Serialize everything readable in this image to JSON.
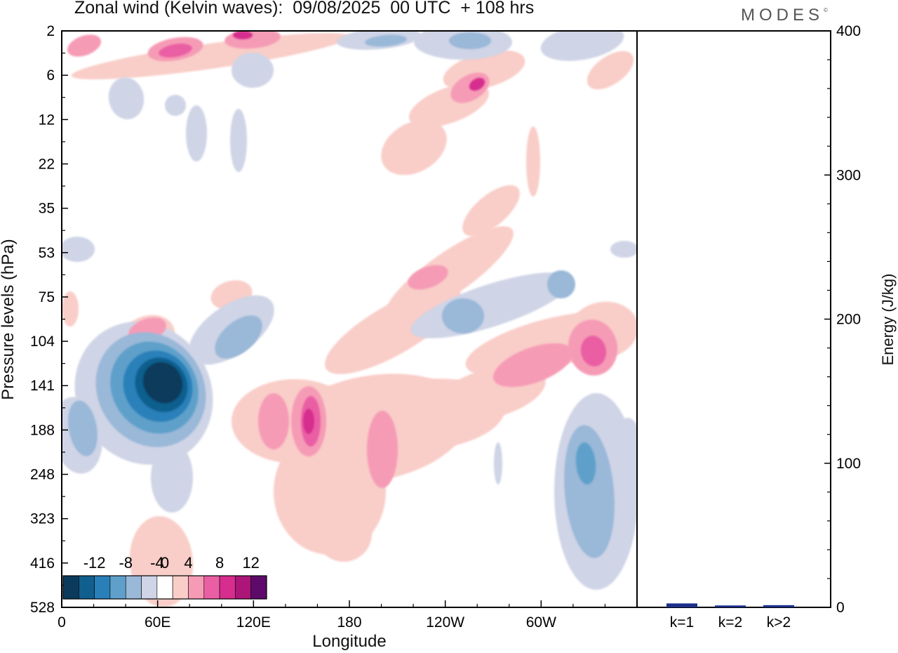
{
  "header": {
    "title": "Zonal wind (Kelvin waves):  09/08/2025  00 UTC  + 108 hrs",
    "brand": "MODES"
  },
  "chart_data": [
    {
      "type": "heatmap",
      "title": "Zonal wind (Kelvin waves):  09/08/2025  00 UTC  + 108 hrs",
      "xlabel": "Longitude",
      "ylabel": "Pressure levels (hPa)",
      "x_ticks": [
        "0",
        "60E",
        "120E",
        "180",
        "120W",
        "60W"
      ],
      "x_tick_degrees": [
        0,
        60,
        120,
        180,
        240,
        300
      ],
      "xlim_degrees": [
        0,
        360
      ],
      "y_ticks": [
        "2",
        "6",
        "12",
        "22",
        "35",
        "53",
        "75",
        "104",
        "141",
        "188",
        "248",
        "323",
        "416",
        "528"
      ],
      "y_scale": "model levels (index spacing)",
      "color_scale": {
        "labels": [
          "-12",
          "-8",
          "-4",
          "0",
          "4",
          "8",
          "12"
        ],
        "boundaries": [
          -14,
          -12,
          -10,
          -8,
          -6,
          -4,
          -2,
          2,
          4,
          6,
          8,
          10,
          12,
          14
        ],
        "colors": [
          "#0b3a5c",
          "#115f8e",
          "#2980b9",
          "#5fa0ca",
          "#9ab8d8",
          "#cfd4e6",
          "#ffffff",
          "#f9cdc8",
          "#f69bb6",
          "#ea5fa3",
          "#d62d8e",
          "#ac1679",
          "#5e0a6a"
        ]
      },
      "features": [
        {
          "sign": "negative",
          "peak_value": -13,
          "lon": 65,
          "level_hPa": 141
        },
        {
          "sign": "negative",
          "peak_value": -7,
          "lon": 330,
          "level_hPa": 248
        },
        {
          "sign": "negative",
          "peak_value": -5,
          "lon": 245,
          "level_hPa": 104
        },
        {
          "sign": "positive",
          "peak_value": 8,
          "lon": 155,
          "level_hPa": 170
        },
        {
          "sign": "positive",
          "peak_value": 7,
          "lon": 332,
          "level_hPa": 130
        },
        {
          "sign": "positive",
          "peak_value": 9,
          "lon": 115,
          "level_hPa": 2
        },
        {
          "sign": "positive",
          "peak_value": 8,
          "lon": 260,
          "level_hPa": 6
        }
      ]
    },
    {
      "type": "bar",
      "categories": [
        "k=1",
        "k=2",
        "k>2"
      ],
      "values": [
        2.0,
        0.6,
        0.8
      ],
      "ylabel": "Energy (J/kg)",
      "ylim": [
        0,
        400
      ],
      "y_ticks": [
        "0",
        "100",
        "200",
        "300",
        "400"
      ],
      "bar_color": "#1b2f8a"
    }
  ]
}
